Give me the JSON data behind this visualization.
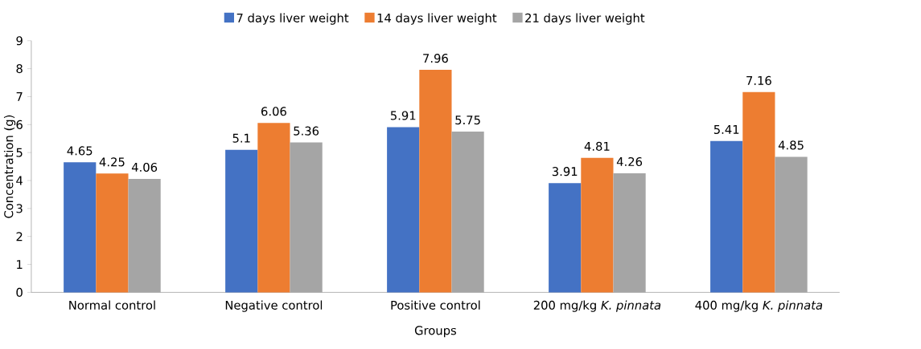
{
  "chart_data": {
    "type": "bar",
    "xlabel": "Groups",
    "ylabel": "Concentration (g)",
    "categories": [
      "Normal control",
      "Negative control",
      "Positive control",
      "200 mg/kg *K. pinnata*",
      "400 mg/kg *K. pinnata*"
    ],
    "series": [
      {
        "name": "7 days liver weight",
        "color": "#4472c4",
        "values": [
          4.65,
          5.1,
          5.91,
          3.91,
          5.41
        ]
      },
      {
        "name": "14 days liver weight",
        "color": "#ed7d31",
        "values": [
          4.25,
          6.06,
          7.96,
          4.81,
          7.16
        ]
      },
      {
        "name": "21 days liver weight",
        "color": "#a5a5a5",
        "values": [
          4.06,
          5.36,
          5.75,
          4.26,
          4.85
        ]
      }
    ],
    "ylim": [
      0,
      9
    ],
    "yticks": [
      0,
      1,
      2,
      3,
      4,
      5,
      6,
      7,
      8,
      9
    ],
    "data_labels": true,
    "legend": "top"
  }
}
